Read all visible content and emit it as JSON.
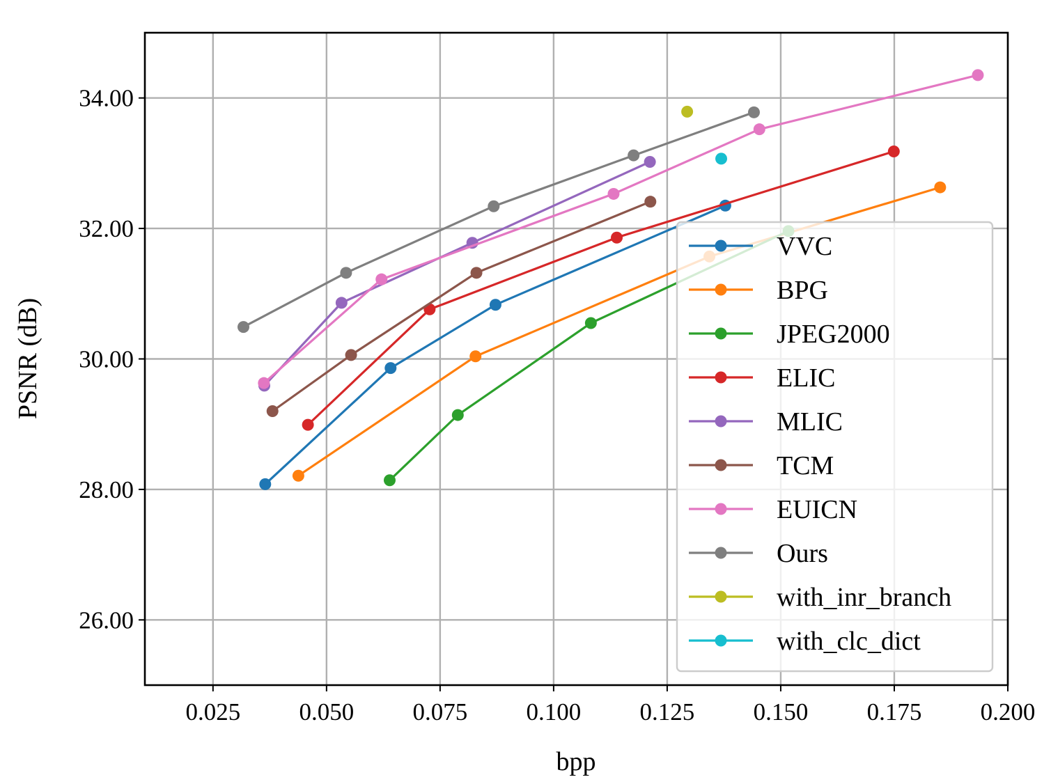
{
  "chart_data": {
    "type": "line",
    "title": "",
    "xlabel": "bpp",
    "ylabel": "PSNR (dB)",
    "xlim": [
      0.01,
      0.2
    ],
    "ylim": [
      25.0,
      35.0
    ],
    "grid": true,
    "legend_position": "lower-right",
    "x_ticks": [
      0.025,
      0.05,
      0.075,
      0.1,
      0.125,
      0.15,
      0.175,
      0.2
    ],
    "x_tick_labels": [
      "0.025",
      "0.050",
      "0.075",
      "0.100",
      "0.125",
      "0.150",
      "0.175",
      "0.200"
    ],
    "y_ticks": [
      26,
      28,
      30,
      32,
      34
    ],
    "y_tick_labels": [
      "26.00",
      "28.00",
      "30.00",
      "32.00",
      "34.00"
    ],
    "series": [
      {
        "name": "VVC",
        "color": "#1f77b4",
        "x": [
          0.0365,
          0.0641,
          0.0872,
          0.1378
        ],
        "y": [
          28.08,
          29.86,
          30.83,
          32.35
        ]
      },
      {
        "name": "BPG",
        "color": "#ff7f0e",
        "x": [
          0.0438,
          0.0828,
          0.1343,
          0.1851
        ],
        "y": [
          28.21,
          30.04,
          31.57,
          32.63
        ]
      },
      {
        "name": "JPEG2000",
        "color": "#2ca02c",
        "x": [
          0.0639,
          0.0789,
          0.1082,
          0.1517
        ],
        "y": [
          28.14,
          29.14,
          30.55,
          31.96
        ]
      },
      {
        "name": "ELIC",
        "color": "#d62728",
        "x": [
          0.0459,
          0.0727,
          0.1139,
          0.1749
        ],
        "y": [
          28.99,
          30.76,
          31.86,
          33.18
        ]
      },
      {
        "name": "MLIC",
        "color": "#9467bd",
        "x": [
          0.0363,
          0.0533,
          0.0821,
          0.1212
        ],
        "y": [
          29.59,
          30.86,
          31.78,
          33.02
        ]
      },
      {
        "name": "TCM",
        "color": "#8c564b",
        "x": [
          0.0381,
          0.0554,
          0.083,
          0.1213
        ],
        "y": [
          29.2,
          30.06,
          31.32,
          32.41
        ]
      },
      {
        "name": "EUICN",
        "color": "#e377c2",
        "x": [
          0.0362,
          0.0621,
          0.1132,
          0.1453,
          0.1934
        ],
        "y": [
          29.63,
          31.22,
          32.53,
          33.52,
          34.35
        ]
      },
      {
        "name": "Ours",
        "color": "#7f7f7f",
        "x": [
          0.0317,
          0.0543,
          0.0868,
          0.1176,
          0.1441
        ],
        "y": [
          30.49,
          31.32,
          32.34,
          33.12,
          33.78
        ]
      },
      {
        "name": "with_inr_branch",
        "color": "#bcbd22",
        "x": [
          0.1294
        ],
        "y": [
          33.79
        ]
      },
      {
        "name": "with_clc_dict",
        "color": "#17becf",
        "x": [
          0.1369
        ],
        "y": [
          33.07
        ]
      }
    ]
  }
}
